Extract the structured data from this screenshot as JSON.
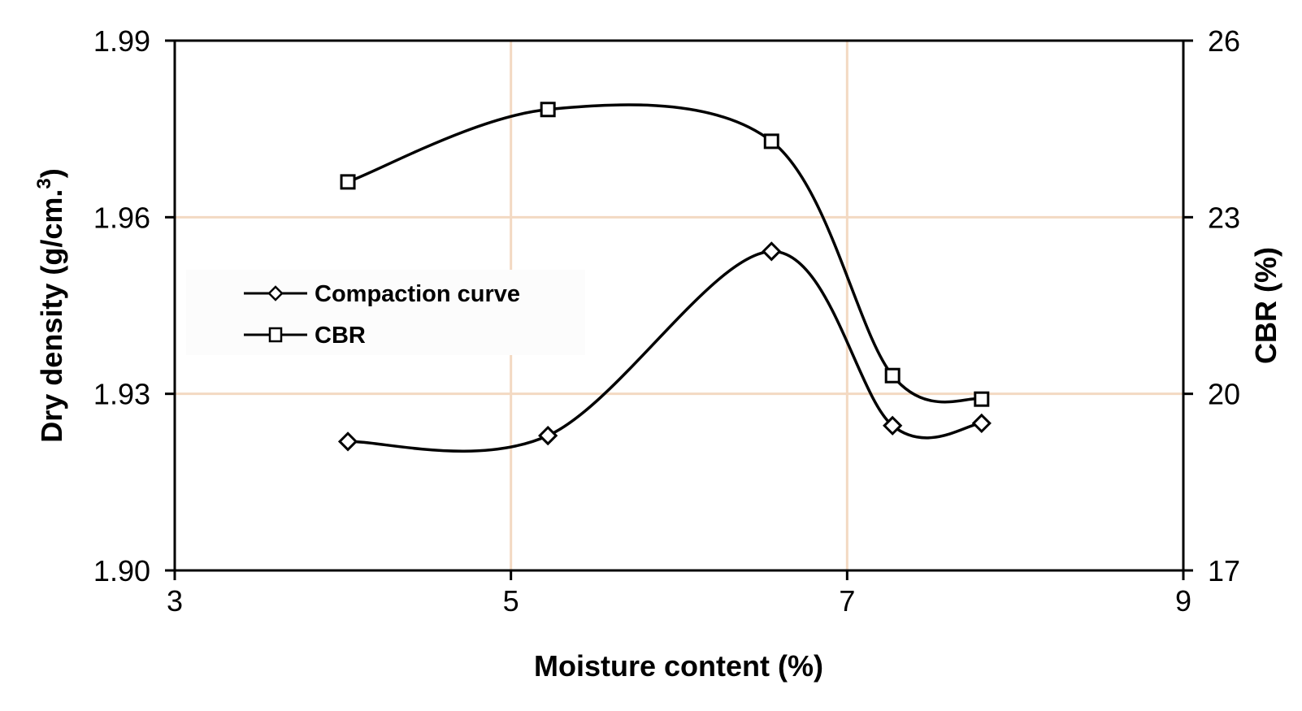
{
  "chart_data": {
    "type": "line",
    "title": "",
    "xlabel": "Moisture content (%)",
    "ylabel": "Dry  density (g/cm.³)",
    "ylabel_parts": {
      "main": "Dry  density (g/cm.",
      "sup": "3",
      "close": ")"
    },
    "y2label": "CBR (%)",
    "xlim": [
      3,
      9
    ],
    "ylim": [
      1.9,
      1.99
    ],
    "y2lim": [
      17,
      26
    ],
    "xticks": [
      "3",
      "5",
      "7",
      "9"
    ],
    "yticks": [
      "1.90",
      "1.93",
      "1.96",
      "1.99"
    ],
    "y2ticks": [
      "17",
      "20",
      "23",
      "26"
    ],
    "grid": true,
    "grid_color": "#f3d9c2",
    "legend_position": "upper-left-inside",
    "series": [
      {
        "name": "Compaction curve",
        "axis": "left",
        "marker": "diamond",
        "smooth": true,
        "color": "#000000",
        "x": [
          4.03,
          5.22,
          6.55,
          7.27,
          7.8
        ],
        "values": [
          1.9219,
          1.9229,
          1.9542,
          1.9246,
          1.925
        ]
      },
      {
        "name": "CBR",
        "axis": "right",
        "marker": "square",
        "smooth": true,
        "color": "#000000",
        "x": [
          4.03,
          5.22,
          6.55,
          7.27,
          7.8
        ],
        "values": [
          23.6,
          24.83,
          24.29,
          20.31,
          19.91
        ]
      }
    ]
  }
}
